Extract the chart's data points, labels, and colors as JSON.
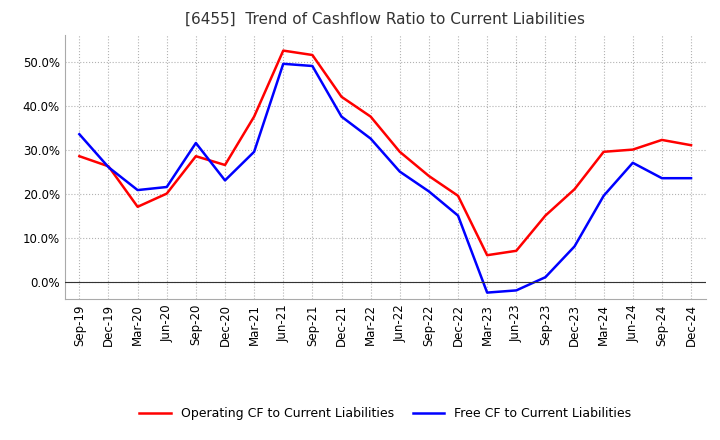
{
  "title": "[6455]  Trend of Cashflow Ratio to Current Liabilities",
  "ylim": [
    -0.04,
    0.56
  ],
  "yticks": [
    0.0,
    0.1,
    0.2,
    0.3,
    0.4,
    0.5
  ],
  "legend_labels": [
    "Operating CF to Current Liabilities",
    "Free CF to Current Liabilities"
  ],
  "line_colors": [
    "#ff0000",
    "#0000ff"
  ],
  "x_labels": [
    "Sep-19",
    "Dec-19",
    "Mar-20",
    "Jun-20",
    "Sep-20",
    "Dec-20",
    "Mar-21",
    "Jun-21",
    "Sep-21",
    "Dec-21",
    "Mar-22",
    "Jun-22",
    "Sep-22",
    "Dec-22",
    "Mar-23",
    "Jun-23",
    "Sep-23",
    "Dec-23",
    "Mar-24",
    "Jun-24",
    "Sep-24",
    "Dec-24"
  ],
  "operating_cf": [
    0.285,
    0.262,
    0.17,
    0.2,
    0.285,
    0.265,
    0.375,
    0.525,
    0.515,
    0.42,
    0.375,
    0.295,
    0.24,
    0.195,
    0.06,
    0.07,
    0.15,
    0.21,
    0.295,
    0.3,
    0.322,
    0.31
  ],
  "free_cf": [
    0.335,
    0.26,
    0.208,
    0.215,
    0.315,
    0.23,
    0.295,
    0.495,
    0.49,
    0.375,
    0.325,
    0.25,
    0.205,
    0.15,
    -0.025,
    -0.02,
    0.01,
    0.08,
    0.195,
    0.27,
    0.235,
    0.235
  ],
  "background_color": "#ffffff",
  "grid_color": "#aaaaaa",
  "title_fontsize": 11,
  "tick_fontsize": 8.5,
  "legend_fontsize": 9
}
